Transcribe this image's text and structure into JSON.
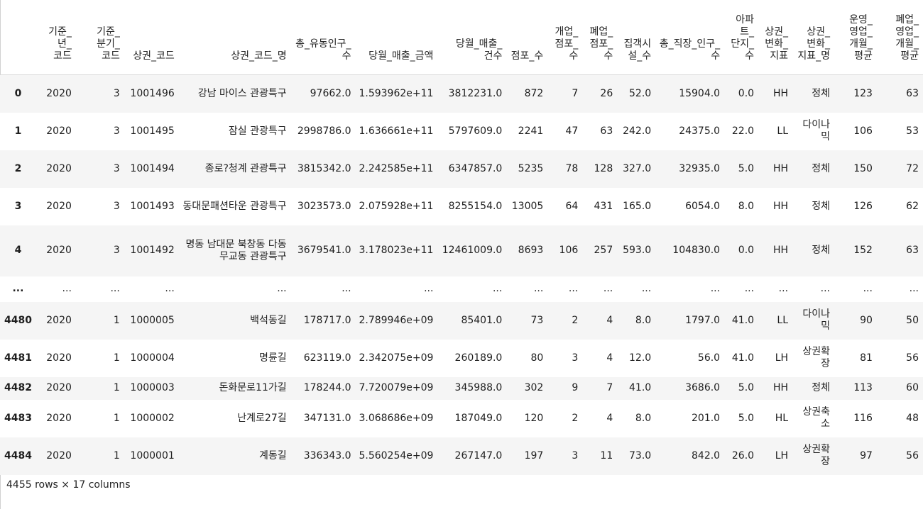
{
  "columns": [
    "기준_년_코드",
    "기준_분기_코드",
    "상권_코드",
    "상권_코드_명",
    "총_유동인구_수",
    "당월_매출_금액",
    "당월_매출_건수",
    "점포_수",
    "개업_점포_수",
    "폐업_점포_수",
    "집객시설_수",
    "총_직장_인구_수",
    "아파트_단지_수",
    "상권_변화_지표",
    "상권_변화_지표_명",
    "운영_영업_개월_평균",
    "폐업_영업_개월_평균"
  ],
  "rows": [
    {
      "idx": "0",
      "cells": [
        "2020",
        "3",
        "1001496",
        "강남 마이스 관광특구",
        "97662.0",
        "1.593962e+11",
        "3812231.0",
        "872",
        "7",
        "26",
        "52.0",
        "15904.0",
        "0.0",
        "HH",
        "정체",
        "123",
        "63"
      ]
    },
    {
      "idx": "1",
      "cells": [
        "2020",
        "3",
        "1001495",
        "잠실 관광특구",
        "2998786.0",
        "1.636661e+11",
        "5797609.0",
        "2241",
        "47",
        "63",
        "242.0",
        "24375.0",
        "22.0",
        "LL",
        "다이나믹",
        "106",
        "53"
      ]
    },
    {
      "idx": "2",
      "cells": [
        "2020",
        "3",
        "1001494",
        "종로?청계 관광특구",
        "3815342.0",
        "2.242585e+11",
        "6347857.0",
        "5235",
        "78",
        "128",
        "327.0",
        "32935.0",
        "5.0",
        "HH",
        "정체",
        "150",
        "72"
      ]
    },
    {
      "idx": "3",
      "cells": [
        "2020",
        "3",
        "1001493",
        "동대문패션타운 관광특구",
        "3023573.0",
        "2.075928e+11",
        "8255154.0",
        "13005",
        "64",
        "431",
        "165.0",
        "6054.0",
        "8.0",
        "HH",
        "정체",
        "126",
        "62"
      ]
    },
    {
      "idx": "4",
      "cells": [
        "2020",
        "3",
        "1001492",
        "명동 남대문 북창동 다동 무교동 관광특구",
        "3679541.0",
        "3.178023e+11",
        "12461009.0",
        "8693",
        "106",
        "257",
        "593.0",
        "104830.0",
        "0.0",
        "HH",
        "정체",
        "152",
        "63"
      ]
    },
    {
      "idx": "...",
      "cells": [
        "...",
        "...",
        "...",
        "...",
        "...",
        "...",
        "...",
        "...",
        "...",
        "...",
        "...",
        "...",
        "...",
        "...",
        "...",
        "...",
        "..."
      ]
    },
    {
      "idx": "4480",
      "cells": [
        "2020",
        "1",
        "1000005",
        "백석동길",
        "178717.0",
        "2.789946e+09",
        "85401.0",
        "73",
        "2",
        "4",
        "8.0",
        "1797.0",
        "41.0",
        "LL",
        "다이나믹",
        "90",
        "50"
      ]
    },
    {
      "idx": "4481",
      "cells": [
        "2020",
        "1",
        "1000004",
        "명륜길",
        "623119.0",
        "2.342075e+09",
        "260189.0",
        "80",
        "3",
        "4",
        "12.0",
        "56.0",
        "41.0",
        "LH",
        "상권확장",
        "81",
        "56"
      ]
    },
    {
      "idx": "4482",
      "cells": [
        "2020",
        "1",
        "1000003",
        "돈화문로11가길",
        "178244.0",
        "7.720079e+09",
        "345988.0",
        "302",
        "9",
        "7",
        "41.0",
        "3686.0",
        "5.0",
        "HH",
        "정체",
        "113",
        "60"
      ]
    },
    {
      "idx": "4483",
      "cells": [
        "2020",
        "1",
        "1000002",
        "난계로27길",
        "347131.0",
        "3.068686e+09",
        "187049.0",
        "120",
        "2",
        "4",
        "8.0",
        "201.0",
        "5.0",
        "HL",
        "상권축소",
        "116",
        "48"
      ]
    },
    {
      "idx": "4484",
      "cells": [
        "2020",
        "1",
        "1000001",
        "계동길",
        "336343.0",
        "5.560254e+09",
        "267147.0",
        "197",
        "3",
        "11",
        "73.0",
        "842.0",
        "26.0",
        "LH",
        "상권확장",
        "97",
        "56"
      ]
    }
  ],
  "shape_text": "4455 rows × 17 columns"
}
